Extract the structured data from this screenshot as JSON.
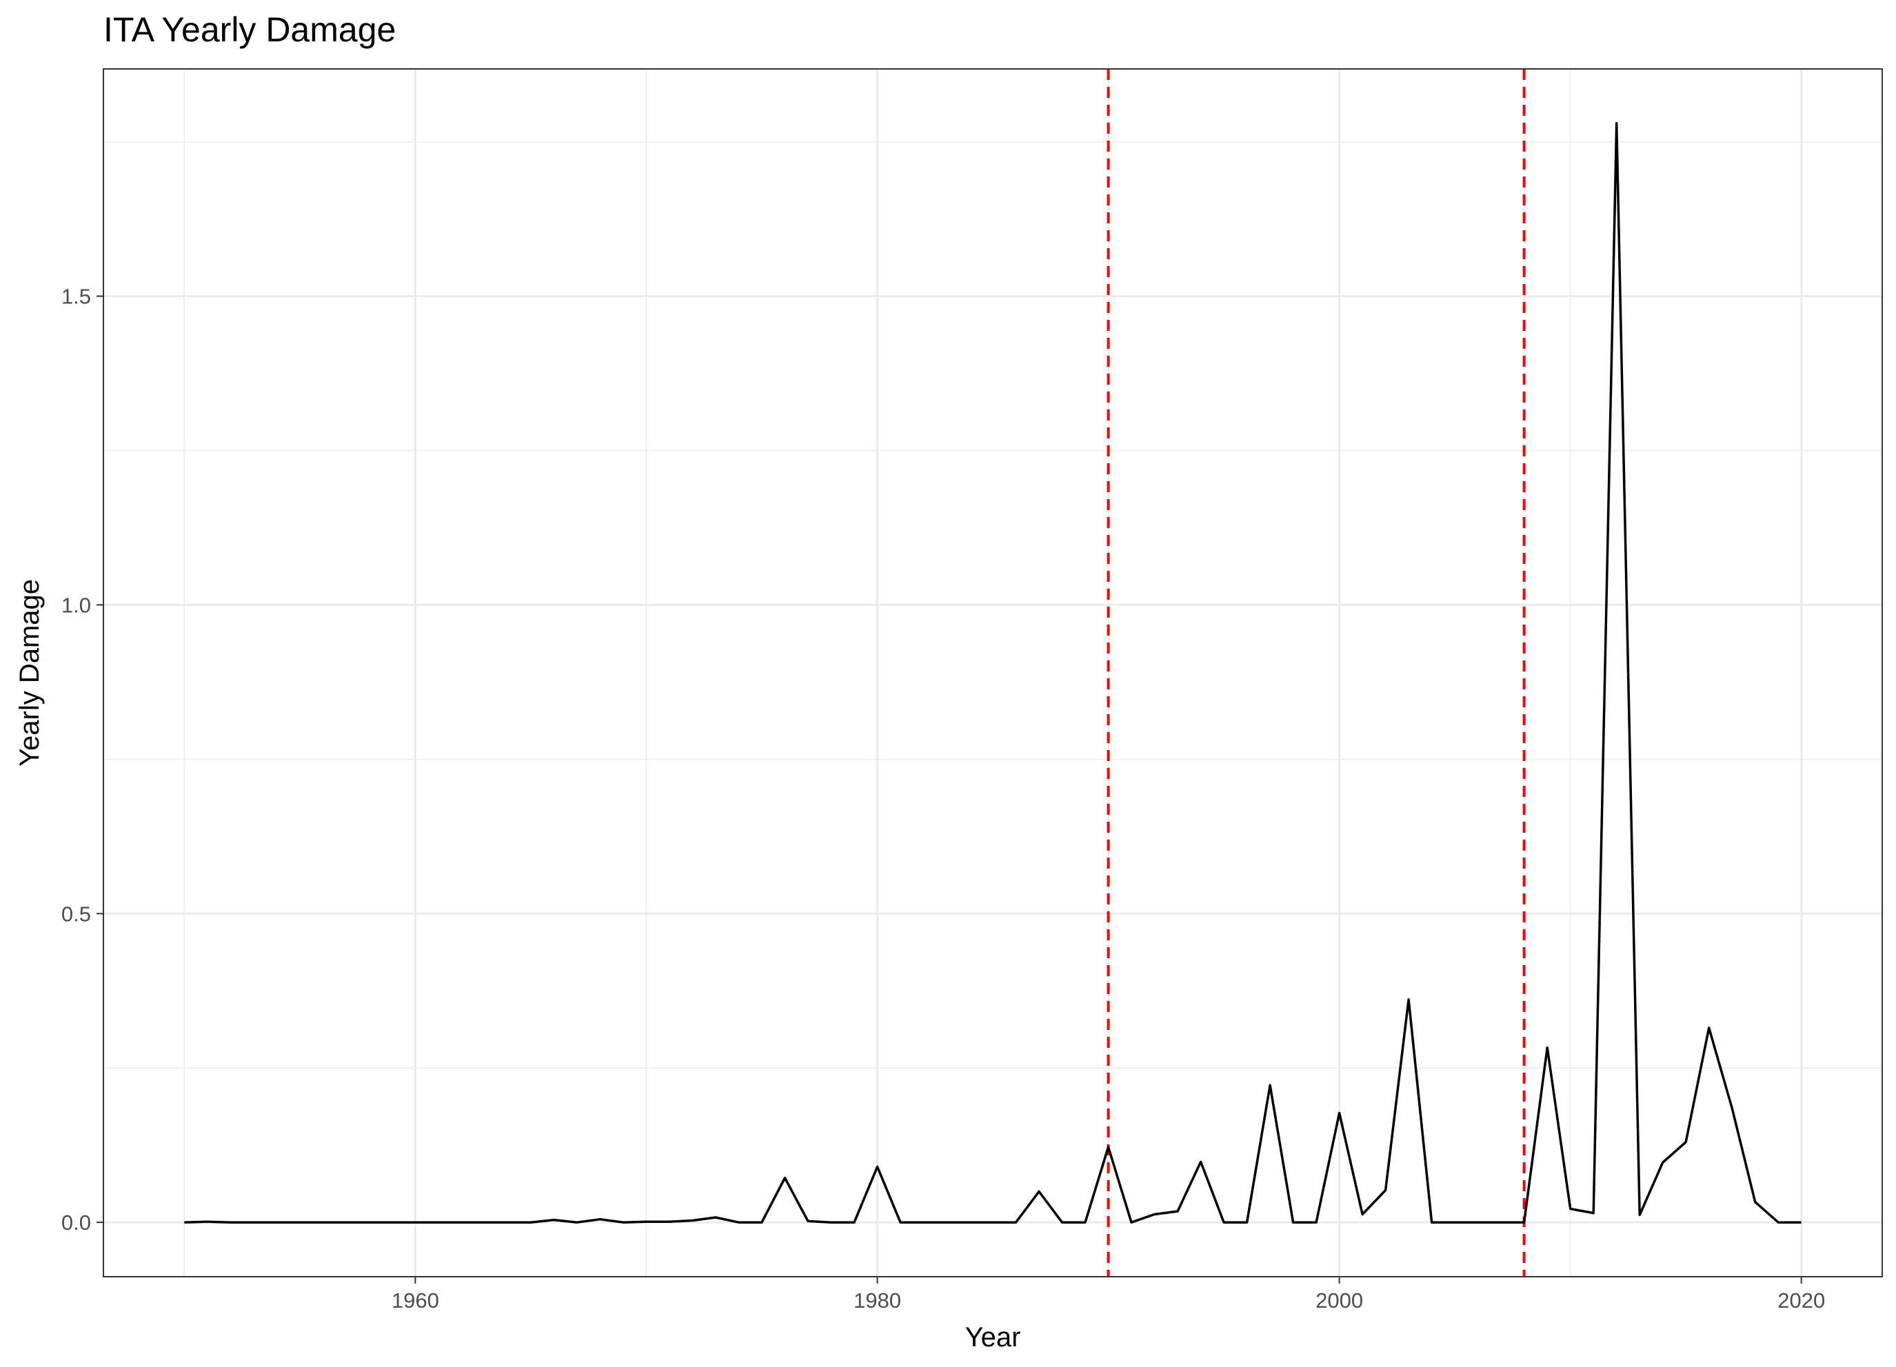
{
  "chart_data": {
    "type": "line",
    "title": "ITA Yearly Damage",
    "xlabel": "Year",
    "ylabel": "Yearly Damage",
    "xlim": [
      1946.5,
      2023.5
    ],
    "ylim": [
      -0.088,
      1.868
    ],
    "x_ticks": [
      1960,
      1980,
      2000,
      2020
    ],
    "x_tick_labels": [
      "1960",
      "1980",
      "2000",
      "2020"
    ],
    "y_ticks": [
      0.0,
      0.5,
      1.0,
      1.5
    ],
    "y_tick_labels": [
      "0.0",
      "0.5",
      "1.0",
      "1.5"
    ],
    "grid": true,
    "legend": "none",
    "vlines": [
      {
        "x": 1990,
        "color": "#ff0000",
        "style": "dashed"
      },
      {
        "x": 2008,
        "color": "#ff0000",
        "style": "dashed"
      }
    ],
    "series": [
      {
        "color": "#000000",
        "x": [
          1950,
          1951,
          1952,
          1953,
          1954,
          1955,
          1956,
          1957,
          1958,
          1959,
          1960,
          1961,
          1962,
          1963,
          1964,
          1965,
          1966,
          1967,
          1968,
          1969,
          1970,
          1971,
          1972,
          1973,
          1974,
          1975,
          1976,
          1977,
          1978,
          1979,
          1980,
          1981,
          1982,
          1983,
          1984,
          1985,
          1986,
          1987,
          1988,
          1989,
          1990,
          1991,
          1992,
          1993,
          1994,
          1995,
          1996,
          1997,
          1998,
          1999,
          2000,
          2001,
          2002,
          2003,
          2004,
          2005,
          2006,
          2007,
          2008,
          2009,
          2010,
          2011,
          2012,
          2013,
          2014,
          2015,
          2016,
          2017,
          2018,
          2019,
          2020
        ],
        "y": [
          0.0,
          0.001,
          0.0,
          0.0,
          0.0,
          0.0,
          0.0,
          0.0,
          0.0,
          0.0,
          0.0,
          0.0,
          0.0,
          0.0,
          0.0,
          0.0,
          0.004,
          0.0,
          0.005,
          0.0,
          0.001,
          0.001,
          0.003,
          0.008,
          0.0,
          0.0,
          0.072,
          0.002,
          0.0,
          0.0,
          0.09,
          0.0,
          0.0,
          0.0,
          0.0,
          0.0,
          0.0,
          0.05,
          0.0,
          0.0,
          0.122,
          0.0,
          0.013,
          0.018,
          0.098,
          0.0,
          0.0,
          0.222,
          0.0,
          0.0,
          0.177,
          0.013,
          0.052,
          0.361,
          0.0,
          0.0,
          0.0,
          0.0,
          0.0,
          0.283,
          0.022,
          0.015,
          1.78,
          0.012,
          0.097,
          0.13,
          0.315,
          0.185,
          0.033,
          0.0,
          0.0
        ]
      }
    ]
  }
}
